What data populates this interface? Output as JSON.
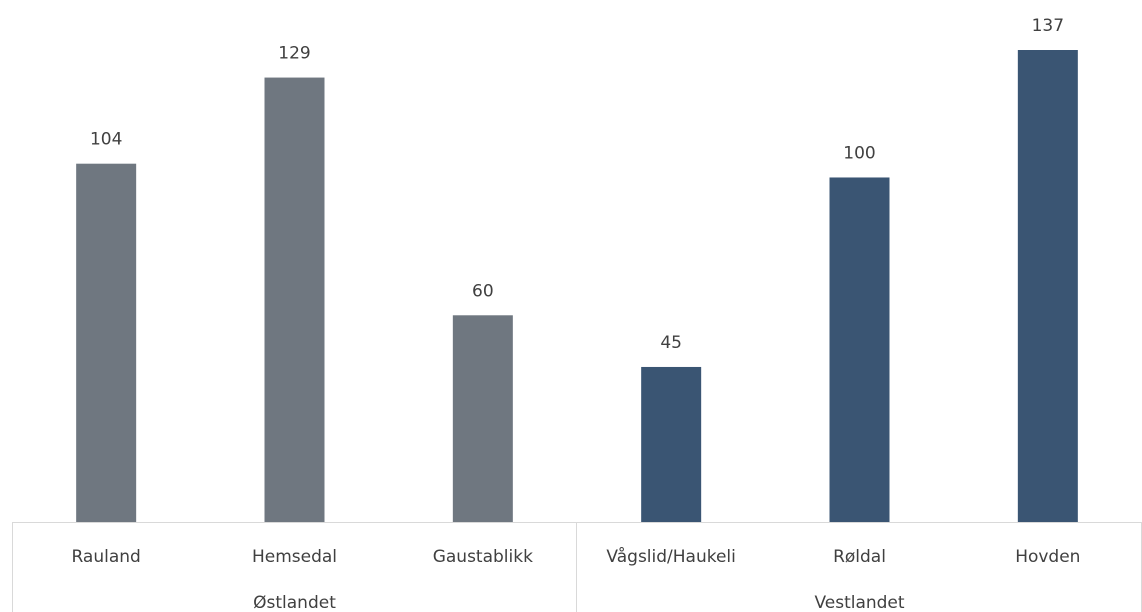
{
  "chart_data": {
    "type": "bar",
    "groups": [
      {
        "name": "Østlandet",
        "color": "#6f7780",
        "categories": [
          "Rauland",
          "Hemsedal",
          "Gaustablikk"
        ],
        "values": [
          104,
          129,
          60
        ]
      },
      {
        "name": "Vestlandet",
        "color": "#3a5573",
        "categories": [
          "Vågslid/Haukeli",
          "Røldal",
          "Hovden"
        ],
        "values": [
          45,
          100,
          137
        ]
      }
    ]
  }
}
